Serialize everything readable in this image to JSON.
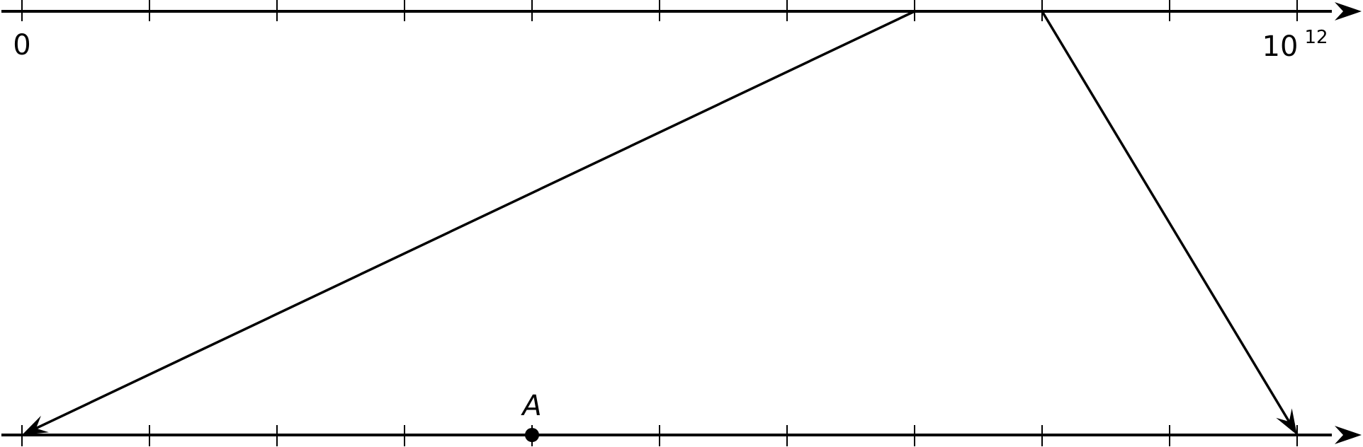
{
  "top_line": {
    "tick_count": 11,
    "start_label": "0",
    "end_label_base": "10",
    "end_label_exponent": "12"
  },
  "bottom_line": {
    "tick_count": 11,
    "point_label": "A",
    "point_tick_index": 4
  },
  "arrows": [
    {
      "from_top_tick": 7,
      "to_bottom_tick": 0
    },
    {
      "from_top_tick": 8,
      "to_bottom_tick": 10
    }
  ]
}
